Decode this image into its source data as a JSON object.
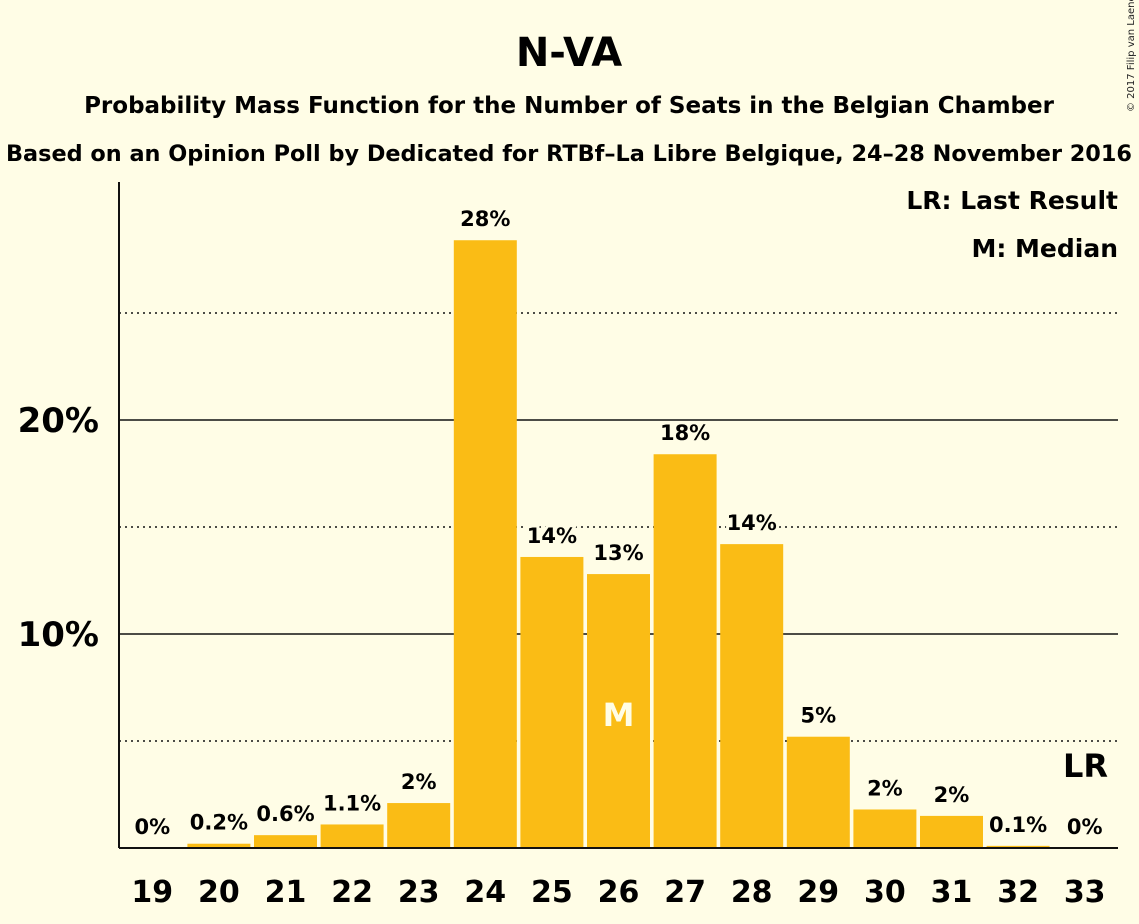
{
  "header": {
    "title": "N-VA",
    "subtitle": "Probability Mass Function for the Number of Seats in the Belgian Chamber",
    "subtitle2": "Based on an Opinion Poll by Dedicated for RTBf–La Libre Belgique, 24–28 November 2016",
    "copyright": "© 2017 Filip van Laenen"
  },
  "legend": {
    "last_result": "LR: Last Result",
    "median": "M: Median",
    "placement": "top-right"
  },
  "colors": {
    "background": "#FFFDE6",
    "bar": "#FABC15",
    "text": "#111111"
  },
  "chart_data": {
    "type": "bar",
    "categories": [
      "19",
      "20",
      "21",
      "22",
      "23",
      "24",
      "25",
      "26",
      "27",
      "28",
      "29",
      "30",
      "31",
      "32",
      "33"
    ],
    "values": [
      0,
      0.2,
      0.6,
      1.1,
      2.1,
      28.4,
      13.6,
      12.8,
      18.4,
      14.2,
      5.2,
      1.8,
      1.5,
      0.1,
      0
    ],
    "data_labels": [
      "0%",
      "0.2%",
      "0.6%",
      "1.1%",
      "2%",
      "28%",
      "14%",
      "13%",
      "18%",
      "14%",
      "5%",
      "2%",
      "2%",
      "0.1%",
      "0%"
    ],
    "ylim": [
      0,
      31
    ],
    "y_ticks": [
      {
        "value": 10,
        "label": "10%"
      },
      {
        "value": 20,
        "label": "20%"
      }
    ],
    "minor_gridlines": [
      5,
      15,
      25
    ],
    "median_category": "26",
    "median_marker": "M",
    "last_result_category": "33",
    "last_result_marker": "LR",
    "grid": true,
    "xlabel": "",
    "ylabel": ""
  }
}
